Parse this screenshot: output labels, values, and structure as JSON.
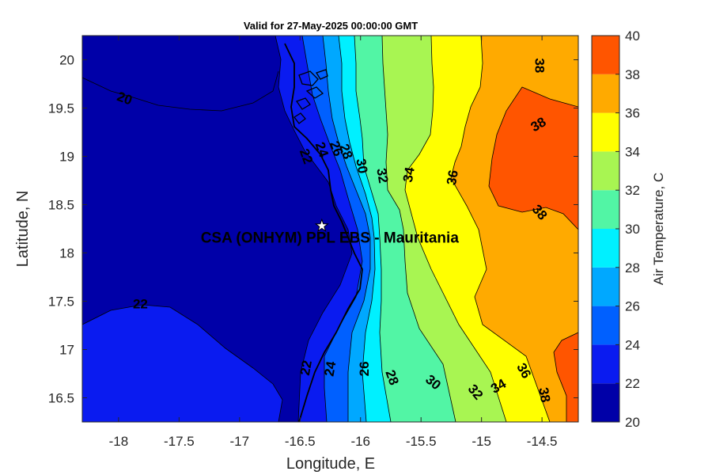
{
  "chart_data": {
    "type": "heatmap",
    "title": "Valid for 27-May-2025 00:00:00 GMT",
    "xlabel": "Longitude, E",
    "ylabel": "Latitude, N",
    "xlim": [
      -18.3,
      -14.2
    ],
    "ylim": [
      16.25,
      20.25
    ],
    "xticks": [
      -18,
      -17.5,
      -17,
      -16.5,
      -16,
      -15.5,
      -15,
      -14.5
    ],
    "yticks": [
      16.5,
      17,
      17.5,
      18,
      18.5,
      19,
      19.5,
      20
    ],
    "colorbar": {
      "label": "Air Temperature, C",
      "range": [
        20,
        40
      ],
      "ticks": [
        20,
        22,
        24,
        26,
        28,
        30,
        32,
        34,
        36,
        38,
        40
      ],
      "levels": [
        20,
        22,
        24,
        26,
        28,
        30,
        32,
        34,
        36,
        38,
        40
      ],
      "colors": [
        "#0000a8",
        "#0a1bf0",
        "#0060ff",
        "#00a8ff",
        "#00f0ff",
        "#52f5a5",
        "#a8f552",
        "#ffff00",
        "#ffaa00",
        "#ff5500",
        "#ff0000"
      ]
    },
    "contour_labels": [
      {
        "text": "20",
        "lon": -17.95,
        "lat": 19.6,
        "rot": 20
      },
      {
        "text": "22",
        "lon": -17.82,
        "lat": 17.47,
        "rot": 0
      },
      {
        "text": "22",
        "lon": -16.45,
        "lat": 19.0,
        "rot": 70
      },
      {
        "text": "22",
        "lon": -16.45,
        "lat": 16.81,
        "rot": -80
      },
      {
        "text": "24",
        "lon": -16.32,
        "lat": 19.07,
        "rot": 70
      },
      {
        "text": "24",
        "lon": -16.25,
        "lat": 16.8,
        "rot": -80
      },
      {
        "text": "26",
        "lon": -16.2,
        "lat": 19.08,
        "rot": 70
      },
      {
        "text": "26",
        "lon": -15.97,
        "lat": 16.8,
        "rot": -90
      },
      {
        "text": "28",
        "lon": -16.12,
        "lat": 19.05,
        "rot": 70
      },
      {
        "text": "28",
        "lon": -15.74,
        "lat": 16.71,
        "rot": 70
      },
      {
        "text": "30",
        "lon": -15.99,
        "lat": 18.9,
        "rot": 80
      },
      {
        "text": "30",
        "lon": -15.4,
        "lat": 16.66,
        "rot": 40
      },
      {
        "text": "32",
        "lon": -15.82,
        "lat": 18.8,
        "rot": 80
      },
      {
        "text": "32",
        "lon": -15.05,
        "lat": 16.56,
        "rot": 50
      },
      {
        "text": "34",
        "lon": -15.6,
        "lat": 18.81,
        "rot": -80
      },
      {
        "text": "34",
        "lon": -14.86,
        "lat": 16.62,
        "rot": -30
      },
      {
        "text": "36",
        "lon": -15.24,
        "lat": 18.78,
        "rot": -80
      },
      {
        "text": "36",
        "lon": -14.65,
        "lat": 16.78,
        "rot": 60
      },
      {
        "text": "38",
        "lon": -14.52,
        "lat": 19.94,
        "rot": 90
      },
      {
        "text": "38",
        "lon": -14.53,
        "lat": 19.33,
        "rot": -30
      },
      {
        "text": "38",
        "lon": -14.52,
        "lat": 18.42,
        "rot": 50
      },
      {
        "text": "38",
        "lon": -14.48,
        "lat": 16.53,
        "rot": 80
      }
    ],
    "site": {
      "name": "CSA (ONHYM) PPL EBS  - Mauritania",
      "lon": -16.32,
      "lat": 18.28
    }
  }
}
